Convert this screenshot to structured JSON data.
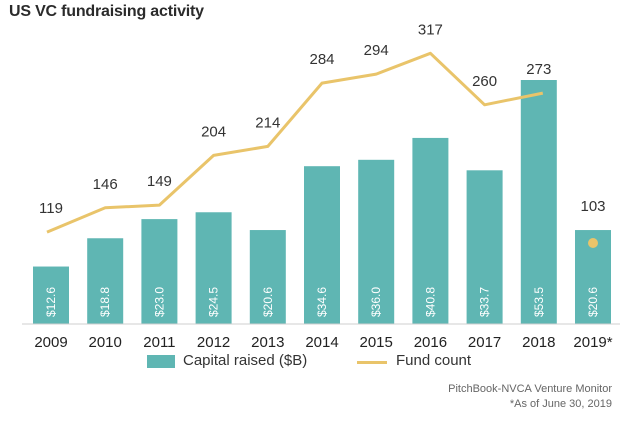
{
  "chart_data": {
    "type": "bar",
    "title": "US VC fundraising activity",
    "categories": [
      "2009",
      "2010",
      "2011",
      "2012",
      "2013",
      "2014",
      "2015",
      "2016",
      "2017",
      "2018",
      "2019*"
    ],
    "series": [
      {
        "name": "Capital raised ($B)",
        "kind": "bar",
        "values": [
          12.6,
          18.8,
          23.0,
          24.5,
          20.6,
          34.6,
          36.0,
          40.8,
          33.7,
          53.5,
          20.6
        ],
        "labels": [
          "$12.6",
          "$18.8",
          "$23.0",
          "$24.5",
          "$20.6",
          "$34.6",
          "$36.0",
          "$40.8",
          "$33.7",
          "$53.5",
          "$20.6"
        ],
        "color": "#5fb6b3"
      },
      {
        "name": "Fund count",
        "kind": "line",
        "values": [
          119,
          146,
          149,
          204,
          214,
          284,
          294,
          317,
          260,
          273,
          103
        ],
        "labels": [
          "119",
          "146",
          "149",
          "204",
          "214",
          "284",
          "294",
          "317",
          "260",
          "273",
          "103"
        ],
        "color": "#e9c46a"
      }
    ],
    "bar_ylim": [
      0,
      60
    ],
    "line_ylim": [
      0,
      420
    ],
    "line_connected_until_index": 9,
    "xlabel": "",
    "ylabel": "",
    "grid": false,
    "legend": "bottom-center"
  },
  "legend": {
    "bar_label": "Capital raised ($B)",
    "line_label": "Fund count"
  },
  "source": {
    "line1": "PitchBook-NVCA Venture Monitor",
    "line2": "*As of June 30, 2019"
  }
}
